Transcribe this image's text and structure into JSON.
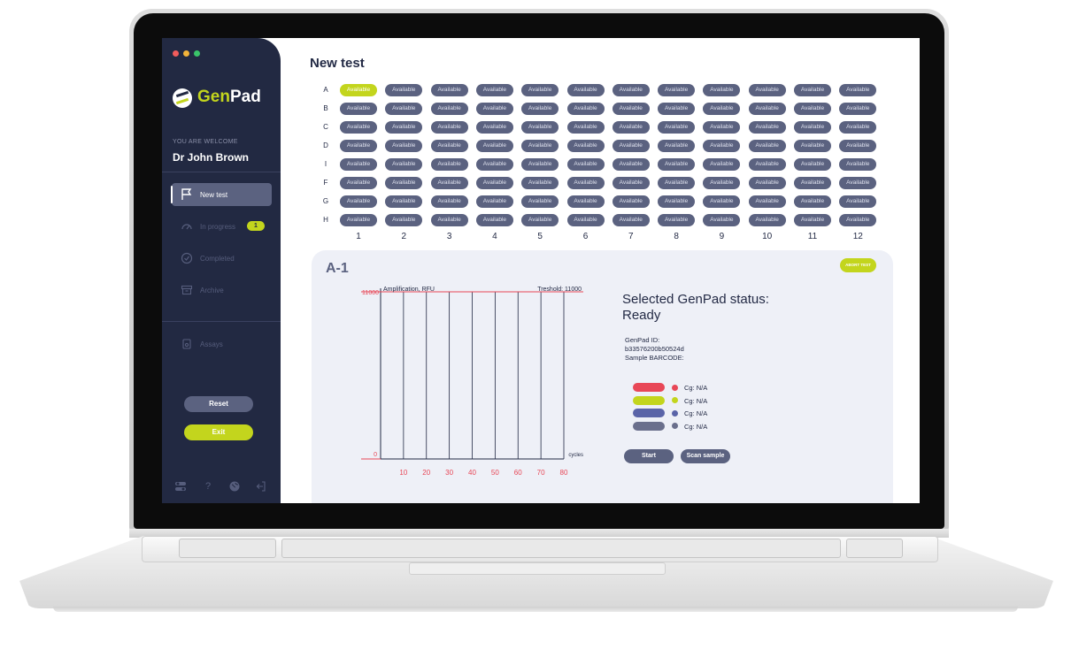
{
  "app": {
    "name_part1": "Gen",
    "name_part2": "Pad",
    "brand_color": "#c3d51d",
    "sidebar_color": "#222942"
  },
  "sidebar": {
    "welcome_label": "YOU ARE WELCOME",
    "user_name": "Dr John Brown",
    "nav": [
      {
        "label": "New test",
        "icon": "flag-icon",
        "active": true
      },
      {
        "label": "In progress",
        "icon": "gauge-icon",
        "badge": "1"
      },
      {
        "label": "Completed",
        "icon": "check-circle-icon"
      },
      {
        "label": "Archive",
        "icon": "archive-icon"
      },
      {
        "label": "Assays",
        "icon": "assay-icon"
      }
    ],
    "reset_label": "Reset",
    "exit_label": "Exit",
    "footer_icons": [
      "toggles-icon",
      "help-icon",
      "globe-icon",
      "logout-icon"
    ]
  },
  "main": {
    "title": "New test",
    "rows": [
      "A",
      "B",
      "C",
      "D",
      "I",
      "F",
      "G",
      "H"
    ],
    "columns": [
      "1",
      "2",
      "3",
      "4",
      "5",
      "6",
      "7",
      "8",
      "9",
      "10",
      "11",
      "12"
    ],
    "well_label": "Available",
    "selected_well": "A-1"
  },
  "detail": {
    "well_id": "A-1",
    "abort_label": "ABORT TEST",
    "status_title_line1": "Selected GenPad status:",
    "status_title_line2": "Ready",
    "genpad_id_label": "GenPad ID:",
    "genpad_id_value": "b33576200b50524d",
    "barcode_label": "Sample BARCODE:",
    "channels": [
      {
        "color": "#e84757",
        "value": "Cg: N/A"
      },
      {
        "color": "#c3d51d",
        "value": "Cg: N/A"
      },
      {
        "color": "#5a64a8",
        "value": "Cg: N/A"
      },
      {
        "color": "#6a6f8c",
        "value": "Cg: N/A"
      }
    ],
    "start_label": "Start",
    "scan_label": "Scan sample"
  },
  "chart_data": {
    "type": "line",
    "title": "",
    "ylabel": "Amplification, RFU",
    "xlabel": "cycles",
    "threshold_label": "Treshold: 11000",
    "threshold": 11000,
    "y_ticks": [
      "11000",
      "0"
    ],
    "x_ticks": [
      "10",
      "20",
      "30",
      "40",
      "50",
      "60",
      "70",
      "80"
    ],
    "xlim": [
      0,
      80
    ],
    "ylim": [
      0,
      11000
    ],
    "grid": true,
    "series": []
  }
}
